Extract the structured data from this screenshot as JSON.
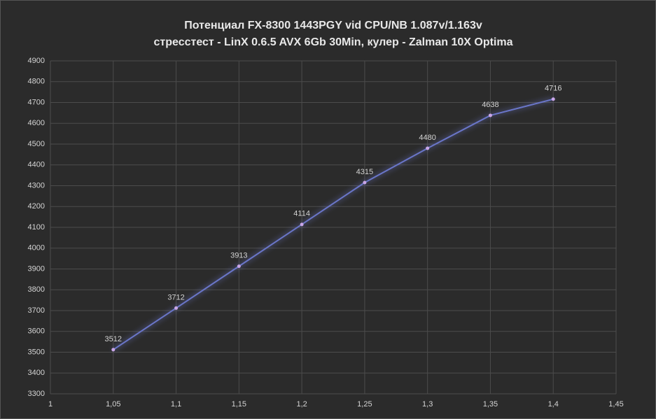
{
  "chart_data": {
    "type": "line",
    "title": "Потенциал FX-8300 1443PGY vid CPU/NB 1.087v/1.163v",
    "subtitle": "стресстест - LinX 0.6.5 AVX 6Gb 30Min,  кулер - Zalman 10X Optima",
    "x": [
      1.05,
      1.1,
      1.15,
      1.2,
      1.25,
      1.3,
      1.35,
      1.4
    ],
    "series": [
      {
        "color": "#6b76c9",
        "values": [
          3512,
          3712,
          3913,
          4114,
          4315,
          4480,
          4638,
          4716
        ]
      }
    ],
    "xlim": [
      1,
      1.45
    ],
    "xticks": [
      1,
      {
        "value": 1.05,
        "label": "1,05"
      },
      {
        "value": 1.1,
        "label": "1,1"
      },
      {
        "value": 1.15,
        "label": "1,15"
      },
      {
        "value": 1.2,
        "label": "1,2"
      },
      {
        "value": 1.25,
        "label": "1,25"
      },
      {
        "value": 1.3,
        "label": "1,3"
      },
      {
        "value": 1.35,
        "label": "1,35"
      },
      {
        "value": 1.4,
        "label": "1,4"
      },
      {
        "value": 1.45,
        "label": "1,45"
      }
    ],
    "ylim": [
      3300,
      4900
    ],
    "yticks": [
      3300,
      3400,
      3500,
      3600,
      3700,
      3800,
      3900,
      4000,
      4100,
      4200,
      4300,
      4400,
      4500,
      4600,
      4700,
      4800,
      4900
    ],
    "grid": true
  }
}
